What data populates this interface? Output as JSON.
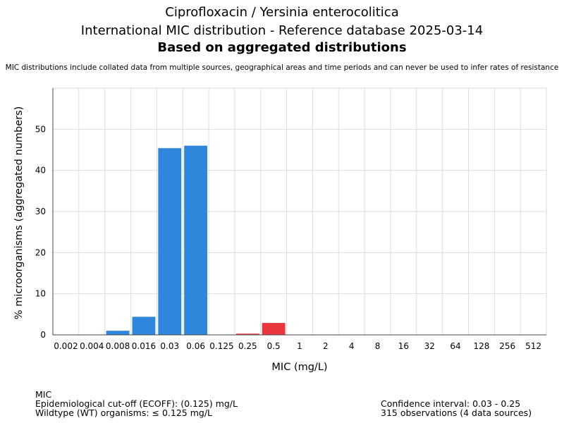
{
  "titles": {
    "line1": "Ciprofloxacin / Yersinia enterocolitica",
    "line2": "International MIC distribution - Reference database 2025-03-14",
    "line3": "Based on aggregated distributions",
    "subtitle": "MIC distributions include collated data from multiple sources, geographical areas and time periods and can never be used to infer rates of resistance"
  },
  "chart_data": {
    "type": "bar",
    "xlabel": "MIC (mg/L)",
    "ylabel": "% microorganisms (aggregated numbers)",
    "ylim": [
      0,
      60
    ],
    "yticks": [
      0,
      10,
      20,
      30,
      40,
      50
    ],
    "grid": true,
    "categories": [
      "0.002",
      "0.004",
      "0.008",
      "0.016",
      "0.03",
      "0.06",
      "0.125",
      "0.25",
      "0.5",
      "1",
      "2",
      "4",
      "8",
      "16",
      "32",
      "64",
      "128",
      "256",
      "512"
    ],
    "values": [
      0,
      0,
      1.0,
      4.4,
      45.4,
      46.0,
      0,
      0.3,
      2.9,
      0,
      0,
      0,
      0,
      0,
      0,
      0,
      0,
      0,
      0
    ],
    "colors": [
      "#2f86dd",
      "#2f86dd",
      "#2f86dd",
      "#2f86dd",
      "#2f86dd",
      "#2f86dd",
      "#2f86dd",
      "#e8363a",
      "#e8363a",
      "#e8363a",
      "#e8363a",
      "#e8363a",
      "#e8363a",
      "#e8363a",
      "#e8363a",
      "#e8363a",
      "#e8363a",
      "#e8363a",
      "#e8363a"
    ]
  },
  "footer": {
    "left": {
      "line1": "MIC",
      "line2": "Epidemiological cut-off (ECOFF): (0.125) mg/L",
      "line3": "Wildtype (WT) organisms: ≤ 0.125 mg/L"
    },
    "right": {
      "line1": "Confidence interval: 0.03 - 0.25",
      "line2": "315 observations (4 data sources)"
    }
  }
}
